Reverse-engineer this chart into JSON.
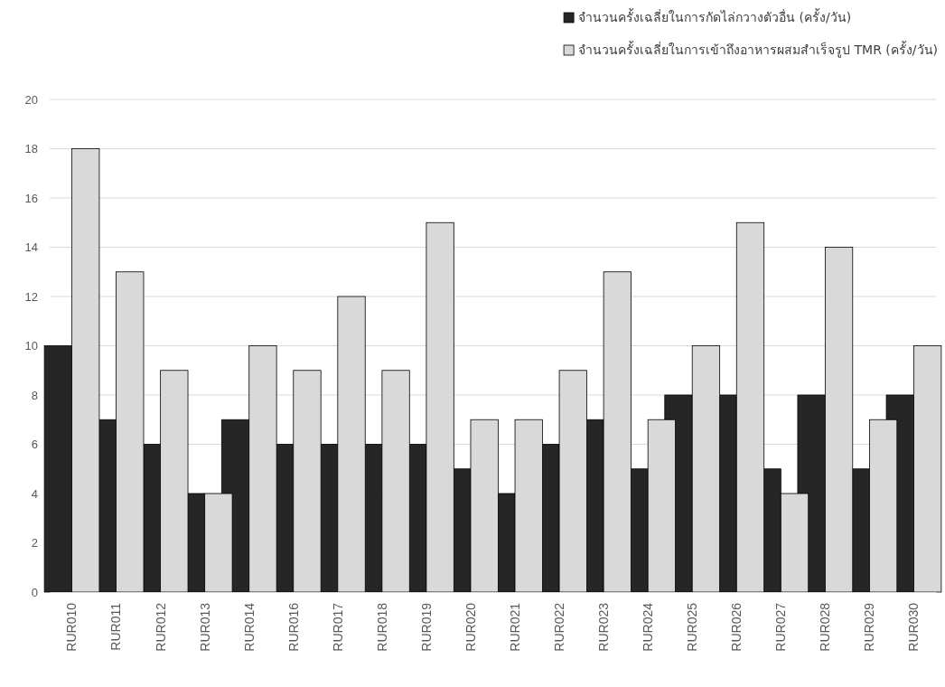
{
  "chart_data": {
    "type": "bar",
    "categories": [
      "RUR010",
      "RUR011",
      "RUR012",
      "RUR013",
      "RUR014",
      "RUR016",
      "RUR017",
      "RUR018",
      "RUR019",
      "RUR020",
      "RUR021",
      "RUR022",
      "RUR023",
      "RUR024",
      "RUR025",
      "RUR026",
      "RUR027",
      "RUR028",
      "RUR029",
      "RUR030"
    ],
    "series": [
      {
        "name": "จำนวนครั้งเฉลี่ยในการกัดไล่กวางตัวอื่น (ครั้ง/วัน)",
        "color": "#262626",
        "values": [
          10,
          7,
          6,
          4,
          7,
          6,
          6,
          6,
          6,
          5,
          4,
          6,
          7,
          5,
          8,
          8,
          5,
          8,
          5,
          8
        ]
      },
      {
        "name": "จำนวนครั้งเฉลี่ยในการเข้าถึงอาหารผสมสำเร็จรูป TMR (ครั้ง/วัน)",
        "color": "#d9d9d9",
        "values": [
          18,
          13,
          9,
          4,
          10,
          9,
          12,
          9,
          15,
          7,
          7,
          9,
          13,
          7,
          10,
          15,
          4,
          14,
          7,
          10
        ]
      }
    ],
    "ylim": [
      0,
      20
    ],
    "yticks": [
      0,
      2,
      4,
      6,
      8,
      10,
      12,
      14,
      16,
      18,
      20
    ],
    "grid": "y",
    "legend": "top right"
  }
}
